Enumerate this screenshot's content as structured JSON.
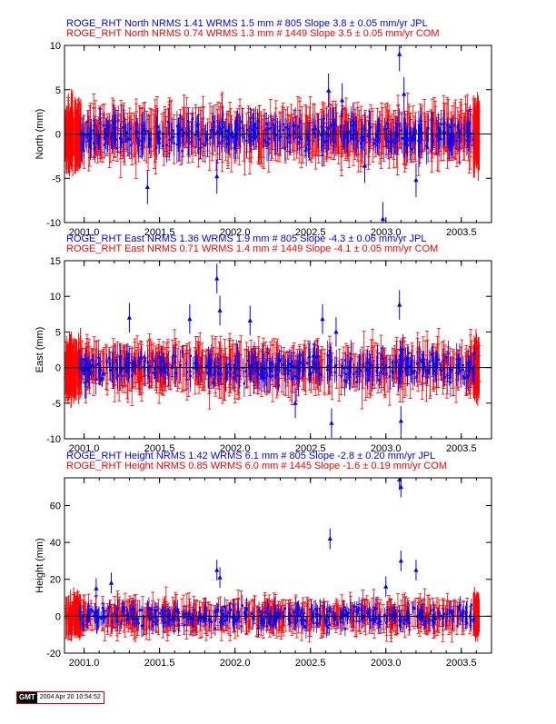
{
  "colors": {
    "jpl": "#0000ff",
    "com": "#ff0000"
  },
  "gmt_stamp": {
    "logo": "GMT",
    "text": "2004 Apr 20 10:54:52"
  },
  "chart_data": [
    {
      "type": "scatter",
      "title_lines": [
        {
          "text": "ROGE_RHT North NRMS 1.41 WRMS  1.5 mm # 805 Slope    3.8 ±  0.05 mm/yr JPL",
          "series": "jpl"
        },
        {
          "text": "ROGE_RHT North NRMS 0.74 WRMS  1.3 mm # 1449 Slope    3.5 ±  0.05 mm/yr COM",
          "series": "com"
        }
      ],
      "ylabel": "North (mm)",
      "xlim": [
        2000.87,
        2003.7
      ],
      "ylim": [
        -10,
        10
      ],
      "xticks": [
        "2001.0",
        "2001.5",
        "2002.0",
        "2002.5",
        "2003.0",
        "2003.5"
      ],
      "yticks": [
        "-10",
        "-5",
        "0",
        "5",
        "10"
      ],
      "zero_line": true,
      "noise": {
        "amp": 1.6,
        "err": 2.4
      },
      "outliers": [
        {
          "x": 2001.42,
          "y": -6.0
        },
        {
          "x": 2001.88,
          "y": -4.8
        },
        {
          "x": 2002.62,
          "y": 4.9
        },
        {
          "x": 2002.71,
          "y": 3.8
        },
        {
          "x": 2002.86,
          "y": -3.6
        },
        {
          "x": 2002.98,
          "y": -9.6
        },
        {
          "x": 2003.09,
          "y": 9.0
        },
        {
          "x": 2003.12,
          "y": 4.5
        },
        {
          "x": 2003.2,
          "y": -5.2
        }
      ]
    },
    {
      "type": "scatter",
      "title_lines": [
        {
          "text": "ROGE_RHT East NRMS 1.36 WRMS  1.9 mm # 805 Slope   -4.3 ±  0.06 mm/yr JPL",
          "series": "jpl"
        },
        {
          "text": "ROGE_RHT East NRMS 0.71 WRMS  1.4 mm # 1449 Slope   -4.1 ±  0.05 mm/yr COM",
          "series": "com"
        }
      ],
      "ylabel": "East (mm)",
      "xlim": [
        2000.87,
        2003.7
      ],
      "ylim": [
        -10,
        15
      ],
      "xticks": [
        "2001.0",
        "2001.5",
        "2002.0",
        "2002.5",
        "2003.0",
        "2003.5"
      ],
      "yticks": [
        "-10",
        "-5",
        "0",
        "5",
        "10",
        "15"
      ],
      "zero_line": true,
      "noise": {
        "amp": 1.9,
        "err": 2.6
      },
      "outliers": [
        {
          "x": 2001.3,
          "y": 7.0
        },
        {
          "x": 2001.7,
          "y": 6.8
        },
        {
          "x": 2001.88,
          "y": 12.5
        },
        {
          "x": 2001.9,
          "y": 8.0
        },
        {
          "x": 2002.1,
          "y": 6.6
        },
        {
          "x": 2002.58,
          "y": 6.8
        },
        {
          "x": 2002.64,
          "y": -7.8
        },
        {
          "x": 2002.67,
          "y": 5.0
        },
        {
          "x": 2003.09,
          "y": 8.8
        },
        {
          "x": 2003.1,
          "y": -7.5
        },
        {
          "x": 2002.4,
          "y": -5.0
        }
      ]
    },
    {
      "type": "scatter",
      "title_lines": [
        {
          "text": "ROGE_RHT Height NRMS 1.42 WRMS  6.1 mm # 805 Slope   -2.8 ±  0.20 mm/yr JPL",
          "series": "jpl"
        },
        {
          "text": "ROGE_RHT Height NRMS 0.85 WRMS  6.0 mm # 1445 Slope   -1.6 ±  0.19 mm/yr COM",
          "series": "com"
        }
      ],
      "ylabel": "Height (mm)",
      "xlim": [
        2000.87,
        2003.7
      ],
      "ylim": [
        -20,
        75
      ],
      "xticks": [
        "2001.0",
        "2001.5",
        "2002.0",
        "2002.5",
        "2003.0",
        "2003.5"
      ],
      "yticks": [
        "-20",
        "0",
        "20",
        "40",
        "60"
      ],
      "zero_line": true,
      "noise": {
        "amp": 5.5,
        "err": 7.0
      },
      "outliers": [
        {
          "x": 2001.08,
          "y": 15.0
        },
        {
          "x": 2001.18,
          "y": 18.0
        },
        {
          "x": 2001.88,
          "y": 25.0
        },
        {
          "x": 2001.9,
          "y": 21.0
        },
        {
          "x": 2002.63,
          "y": 42.0
        },
        {
          "x": 2003.09,
          "y": 74.0
        },
        {
          "x": 2003.1,
          "y": 70.0
        },
        {
          "x": 2003.1,
          "y": 30.0
        },
        {
          "x": 2003.2,
          "y": 25.0
        },
        {
          "x": 2003.0,
          "y": 16.0
        }
      ]
    }
  ]
}
